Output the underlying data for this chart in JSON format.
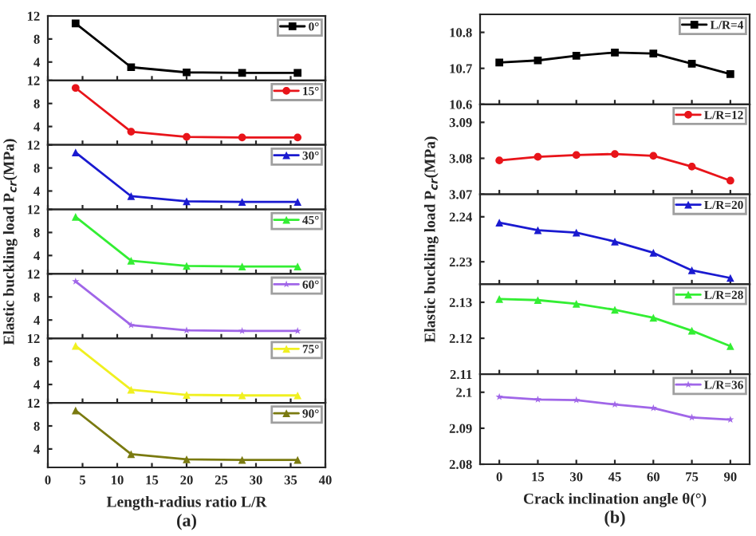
{
  "chart_data": [
    {
      "type": "line",
      "x": [
        4,
        12,
        20,
        28,
        36
      ],
      "xlim": [
        0,
        40
      ],
      "xticks": [
        0,
        5,
        10,
        15,
        20,
        25,
        30,
        35,
        40
      ],
      "ylim": [
        0.8,
        12
      ],
      "yticks": [
        4,
        8,
        12
      ],
      "tick_labels": "y",
      "legend": "top right",
      "marker": "square",
      "series": [
        {
          "name": "0°",
          "color": "#000000",
          "values": [
            10.7,
            3.1,
            2.2,
            2.1,
            2.1
          ]
        }
      ]
    },
    {
      "type": "line",
      "x": [
        4,
        12,
        20,
        28,
        36
      ],
      "xlim": [
        0,
        40
      ],
      "xticks": [
        0,
        5,
        10,
        15,
        20,
        25,
        30,
        35,
        40
      ],
      "ylim": [
        0.8,
        12
      ],
      "yticks": [
        4,
        8,
        12
      ],
      "tick_labels": "y",
      "legend": "top right",
      "marker": "circle",
      "series": [
        {
          "name": "15°",
          "color": "#e8141a",
          "values": [
            10.7,
            3.1,
            2.2,
            2.1,
            2.1
          ]
        }
      ]
    },
    {
      "type": "line",
      "x": [
        4,
        12,
        20,
        28,
        36
      ],
      "xlim": [
        0,
        40
      ],
      "xticks": [
        0,
        5,
        10,
        15,
        20,
        25,
        30,
        35,
        40
      ],
      "ylim": [
        0.8,
        12
      ],
      "yticks": [
        4,
        8,
        12
      ],
      "tick_labels": "y",
      "legend": "top right",
      "marker": "triangle",
      "series": [
        {
          "name": "30°",
          "color": "#1a1ad0",
          "values": [
            10.7,
            3.1,
            2.2,
            2.1,
            2.1
          ]
        }
      ]
    },
    {
      "type": "line",
      "x": [
        4,
        12,
        20,
        28,
        36
      ],
      "xlim": [
        0,
        40
      ],
      "xticks": [
        0,
        5,
        10,
        15,
        20,
        25,
        30,
        35,
        40
      ],
      "ylim": [
        0.8,
        12
      ],
      "yticks": [
        4,
        8,
        12
      ],
      "tick_labels": "y",
      "legend": "top right",
      "marker": "triangle",
      "ylabel": "Elastic buckling load P$_{cr}$(MPa)",
      "series": [
        {
          "name": "45°",
          "color": "#33ee33",
          "values": [
            10.7,
            3.1,
            2.2,
            2.1,
            2.1
          ]
        }
      ]
    },
    {
      "type": "line",
      "x": [
        4,
        12,
        20,
        28,
        36
      ],
      "xlim": [
        0,
        40
      ],
      "xticks": [
        0,
        5,
        10,
        15,
        20,
        25,
        30,
        35,
        40
      ],
      "ylim": [
        0.8,
        12
      ],
      "yticks": [
        4,
        8,
        12
      ],
      "tick_labels": "y",
      "legend": "top right",
      "marker": "star",
      "series": [
        {
          "name": "60°",
          "color": "#a066e8",
          "values": [
            10.7,
            3.1,
            2.2,
            2.1,
            2.1
          ]
        }
      ]
    },
    {
      "type": "line",
      "x": [
        4,
        12,
        20,
        28,
        36
      ],
      "xlim": [
        0,
        40
      ],
      "xticks": [
        0,
        5,
        10,
        15,
        20,
        25,
        30,
        35,
        40
      ],
      "ylim": [
        0.8,
        12
      ],
      "yticks": [
        4,
        8,
        12
      ],
      "tick_labels": "y",
      "legend": "top right",
      "marker": "triangle",
      "series": [
        {
          "name": "75°",
          "color": "#f0f020",
          "values": [
            10.7,
            3.1,
            2.2,
            2.1,
            2.1
          ]
        }
      ]
    },
    {
      "type": "line",
      "x": [
        4,
        12,
        20,
        28,
        36
      ],
      "xlim": [
        0,
        40
      ],
      "xticks": [
        0,
        5,
        10,
        15,
        20,
        25,
        30,
        35,
        40
      ],
      "ylim": [
        0.8,
        12
      ],
      "yticks": [
        4,
        8,
        12
      ],
      "legend": "top right",
      "marker": "triangle",
      "xlabel": "Length-radius ratio L/R",
      "annotations": [
        "(a)"
      ],
      "series": [
        {
          "name": "90°",
          "color": "#7a7a10",
          "values": [
            10.7,
            3.1,
            2.2,
            2.1,
            2.1
          ]
        }
      ]
    },
    {
      "type": "line",
      "x": [
        0,
        15,
        30,
        45,
        60,
        75,
        90
      ],
      "xlim": [
        -7.5,
        97.5
      ],
      "xticks": [
        0,
        15,
        30,
        45,
        60,
        75,
        90
      ],
      "ylim": [
        10.6,
        10.85
      ],
      "yticks": [
        10.6,
        10.7,
        10.8
      ],
      "tick_labels": "y",
      "legend": "top right",
      "marker": "square",
      "series": [
        {
          "name": "L/R=4",
          "color": "#000000",
          "values": [
            10.716,
            10.722,
            10.735,
            10.744,
            10.741,
            10.713,
            10.684
          ]
        }
      ]
    },
    {
      "type": "line",
      "x": [
        0,
        15,
        30,
        45,
        60,
        75,
        90
      ],
      "xlim": [
        -7.5,
        97.5
      ],
      "xticks": [
        0,
        15,
        30,
        45,
        60,
        75,
        90
      ],
      "ylim": [
        3.07,
        3.095
      ],
      "yticks": [
        3.07,
        3.08,
        3.09
      ],
      "tick_labels": "y",
      "legend": "top right",
      "marker": "circle",
      "series": [
        {
          "name": "L/R=12",
          "color": "#e8141a",
          "values": [
            3.0794,
            3.0804,
            3.0809,
            3.0812,
            3.0807,
            3.0777,
            3.0738
          ]
        }
      ]
    },
    {
      "type": "line",
      "x": [
        0,
        15,
        30,
        45,
        60,
        75,
        90
      ],
      "xlim": [
        -7.5,
        97.5
      ],
      "xticks": [
        0,
        15,
        30,
        45,
        60,
        75,
        90
      ],
      "ylim": [
        2.225,
        2.245
      ],
      "yticks": [
        2.23,
        2.24
      ],
      "tick_labels": "y",
      "legend": "top right",
      "marker": "triangle",
      "ylabel": "Elastic buckling load P$_{cr}$(MPa)",
      "series": [
        {
          "name": "L/R=20",
          "color": "#1a1ad0",
          "values": [
            2.2387,
            2.237,
            2.2365,
            2.2345,
            2.232,
            2.2281,
            2.2264
          ]
        }
      ]
    },
    {
      "type": "line",
      "x": [
        0,
        15,
        30,
        45,
        60,
        75,
        90
      ],
      "xlim": [
        -7.5,
        97.5
      ],
      "xticks": [
        0,
        15,
        30,
        45,
        60,
        75,
        90
      ],
      "ylim": [
        2.11,
        2.135
      ],
      "yticks": [
        2.11,
        2.12,
        2.13
      ],
      "tick_labels": "y",
      "legend": "top right",
      "marker": "triangle",
      "series": [
        {
          "name": "L/R=28",
          "color": "#33ee33",
          "values": [
            2.1309,
            2.1306,
            2.1296,
            2.1279,
            2.1257,
            2.1221,
            2.1178
          ]
        }
      ]
    },
    {
      "type": "line",
      "x": [
        0,
        15,
        30,
        45,
        60,
        75,
        90
      ],
      "xlim": [
        -7.5,
        97.5
      ],
      "xticks": [
        0,
        15,
        30,
        45,
        60,
        75,
        90
      ],
      "ylim": [
        2.08,
        2.105
      ],
      "yticks": [
        2.08,
        2.09,
        2.1
      ],
      "legend": "top right",
      "marker": "star",
      "xlabel": "Crack inclination angle θ(°)",
      "annotations": [
        "(b)"
      ],
      "series": [
        {
          "name": "L/R=36",
          "color": "#a066e8",
          "values": [
            2.0987,
            2.098,
            2.0978,
            2.0966,
            2.0956,
            2.093,
            2.0924
          ]
        }
      ]
    }
  ]
}
